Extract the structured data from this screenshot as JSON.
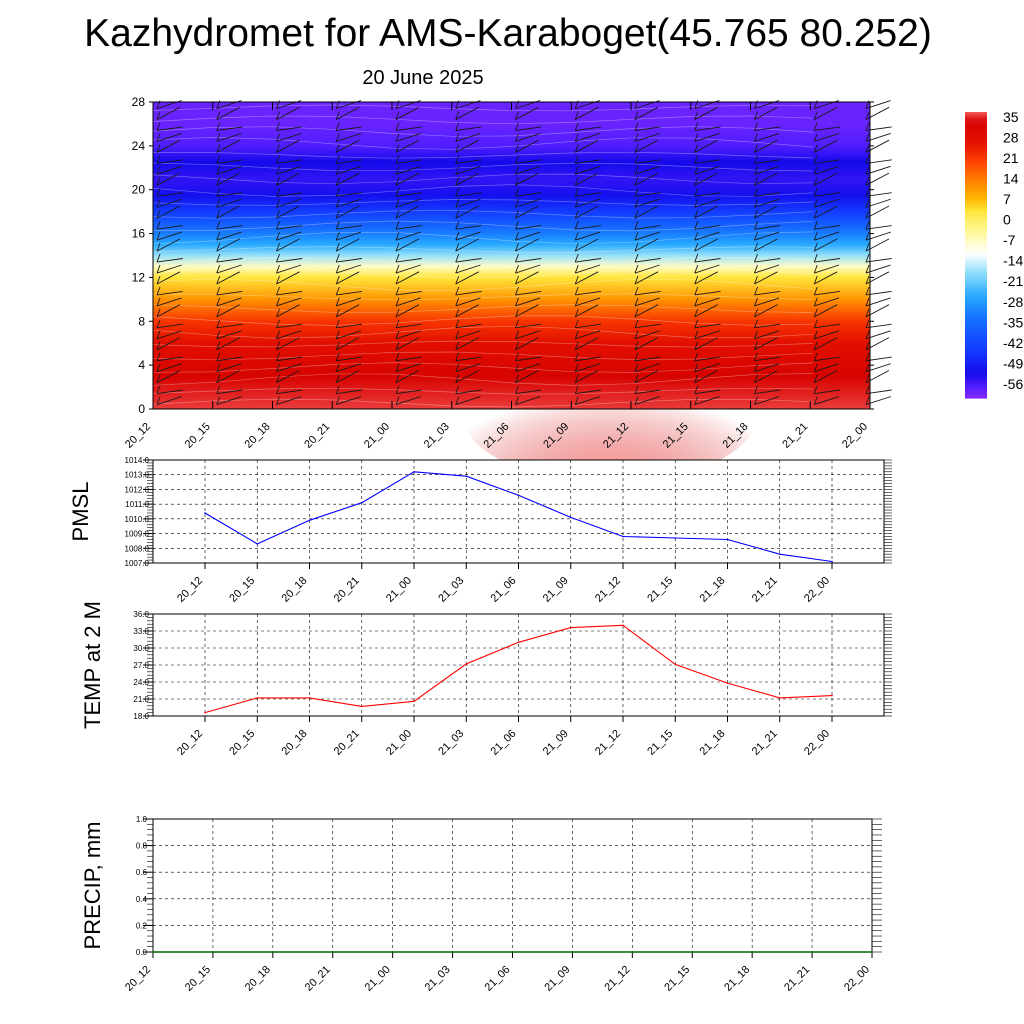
{
  "title": "Kazhydromet for AMS-Karaboget(45.765 80.252)",
  "subtitle": "20 June 2025",
  "chart_data": [
    {
      "type": "heatmap",
      "name": "vertical-cross-section",
      "x_categories": [
        "20_12",
        "20_15",
        "20_18",
        "20_21",
        "21_00",
        "21_03",
        "21_06",
        "21_09",
        "21_12",
        "21_15",
        "21_18",
        "21_21",
        "22_00"
      ],
      "y_ticks": [
        0,
        4,
        8,
        12,
        16,
        20,
        24,
        28
      ],
      "ylim": [
        0,
        28
      ],
      "y_profile": [
        {
          "y": 0,
          "value": 34
        },
        {
          "y": 3,
          "value": 31
        },
        {
          "y": 6,
          "value": 26
        },
        {
          "y": 8,
          "value": 20
        },
        {
          "y": 10,
          "value": 10
        },
        {
          "y": 12,
          "value": 2
        },
        {
          "y": 13,
          "value": -8
        },
        {
          "y": 14,
          "value": -18
        },
        {
          "y": 15,
          "value": -26
        },
        {
          "y": 16,
          "value": -32
        },
        {
          "y": 17,
          "value": -38
        },
        {
          "y": 18,
          "value": -44
        },
        {
          "y": 19.5,
          "value": -51
        },
        {
          "y": 21,
          "value": -54
        },
        {
          "y": 22.5,
          "value": -52
        },
        {
          "y": 24,
          "value": -56
        },
        {
          "y": 26,
          "value": -58
        },
        {
          "y": 28,
          "value": -58
        }
      ],
      "colorbar": {
        "labels": [
          "35",
          "28",
          "21",
          "14",
          "7",
          "0",
          "-7",
          "-14",
          "-21",
          "-28",
          "-35",
          "-42",
          "-49",
          "-56"
        ],
        "colors": [
          "#ff7070",
          "#d50000",
          "#e82000",
          "#ff4c00",
          "#ff8a00",
          "#ffc800",
          "#fff060",
          "#ffffff",
          "#80e0ff",
          "#20a8ff",
          "#1060ff",
          "#1a20ff",
          "#3a10ff",
          "#7a28ff"
        ]
      },
      "grid": false
    },
    {
      "type": "line",
      "name": "pmsl",
      "ylabel": "PMSL",
      "categories": [
        "20_12",
        "20_15",
        "20_18",
        "20_21",
        "21_00",
        "21_03",
        "21_06",
        "21_09",
        "21_12",
        "21_15",
        "21_18",
        "21_21",
        "22_00"
      ],
      "values": [
        1010.4,
        1008.3,
        1009.9,
        1011.1,
        1013.2,
        1012.9,
        1011.6,
        1010.1,
        1008.8,
        1008.7,
        1008.6,
        1007.6,
        1007.1
      ],
      "ylim": [
        1007.0,
        1014.0
      ],
      "y_ticks": [
        1007.0,
        1008.0,
        1009.0,
        1010.0,
        1011.0,
        1012.0,
        1013.0,
        1014.0
      ],
      "y_tick_labels": [
        "1007.0",
        "1008.0",
        "1009.0",
        "1010.0",
        "1011.0",
        "1012.0",
        "1013.0",
        "1014.0"
      ],
      "color": "#0000ff",
      "grid": true
    },
    {
      "type": "line",
      "name": "temp-2m",
      "ylabel": "TEMP at 2 M",
      "categories": [
        "20_12",
        "20_15",
        "20_18",
        "20_21",
        "21_00",
        "21_03",
        "21_06",
        "21_09",
        "21_12",
        "21_15",
        "21_18",
        "21_21",
        "22_00"
      ],
      "values": [
        18.6,
        21.2,
        21.2,
        19.7,
        20.6,
        27.2,
        31.0,
        33.6,
        34.0,
        27.1,
        23.8,
        21.2,
        21.6
      ],
      "ylim": [
        18.0,
        36.0
      ],
      "y_ticks": [
        18,
        21,
        24,
        27,
        30,
        33,
        36
      ],
      "y_tick_labels": [
        "18.0",
        "21.0",
        "24.0",
        "27.0",
        "30.0",
        "33.0",
        "36.0"
      ],
      "color": "#ff0000",
      "grid": true
    },
    {
      "type": "line",
      "name": "precip",
      "ylabel": "PRECIP, mm",
      "categories": [
        "20_12",
        "20_15",
        "20_18",
        "20_21",
        "21_00",
        "21_03",
        "21_06",
        "21_09",
        "21_12",
        "21_15",
        "21_18",
        "21_21",
        "22_00"
      ],
      "values": [
        0,
        0,
        0,
        0,
        0,
        0,
        0,
        0,
        0,
        0,
        0,
        0,
        0
      ],
      "ylim": [
        0.0,
        1.0
      ],
      "y_ticks": [
        0,
        0.2,
        0.4,
        0.6,
        0.8,
        1.0
      ],
      "y_tick_labels": [
        "0.0",
        "0.2",
        "0.4",
        "0.6",
        "0.8",
        "1.0"
      ],
      "color": "#006400",
      "grid": true
    }
  ]
}
